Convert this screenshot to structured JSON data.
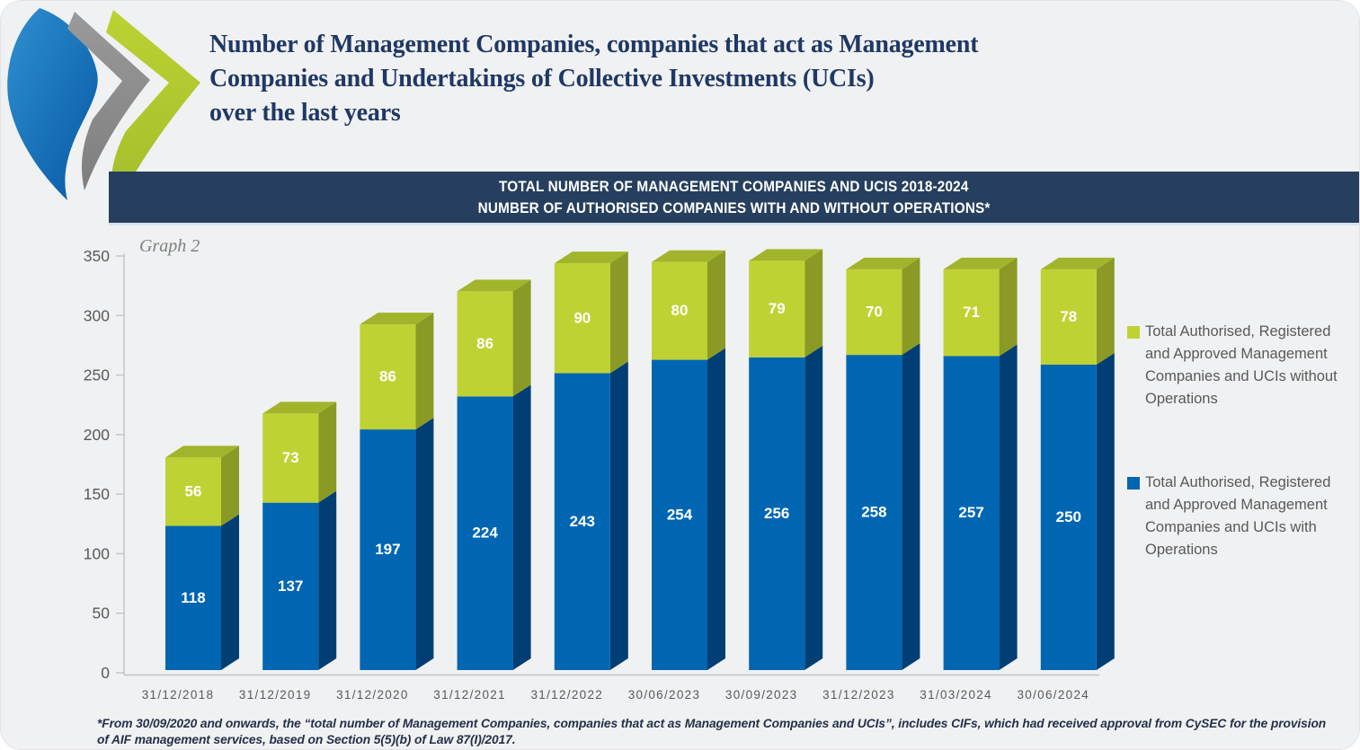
{
  "page": {
    "title_lines": [
      "Number of Management Companies, companies that act as Management",
      "Companies and Undertakings of Collective Investments (UCIs)",
      "over the last years"
    ],
    "graph_label": "Graph 2",
    "footnote_lines": [
      "*From 30/09/2020 and onwards, the “total number of Management Companies, companies that act as Management Companies and UCIs”, includes CIFs, which had received approval from CySEC for the provision",
      "of AIF management services, based on Section 5(5)(b) of Law 87(I)/2017."
    ]
  },
  "banner": {
    "line1": "TOTAL NUMBER OF MANAGEMENT COMPANIES AND UCIS 2018-2024",
    "line2": "NUMBER OF AUTHORISED COMPANIES WITH AND WITHOUT OPERATIONS*"
  },
  "legend": [
    {
      "color": "#BFD233",
      "label": "Total Authorised, Registered and Approved Management Companies and UCIs without Operations"
    },
    {
      "color": "#0066B2",
      "label": "Total Authorised, Registered and Approved Management Companies and UCIs with Operations"
    }
  ],
  "colors": {
    "background": "#F0F1F2",
    "banner_bg": "#263F5E",
    "title_text": "#1F3864",
    "axis_text": "#595959",
    "axis_line": "#C3C3C6",
    "bar_label_text": "#FFFFFF",
    "footnote_text": "#253048",
    "graph_label_text": "#7F7F7F"
  },
  "chart_data": {
    "type": "bar",
    "stacked": true,
    "title": "TOTAL NUMBER OF MANAGEMENT COMPANIES AND UCIS 2018-2024 — NUMBER OF AUTHORISED COMPANIES WITH AND WITHOUT OPERATIONS*",
    "annotation": "Graph 2",
    "categories": [
      "31/12/2018",
      "31/12/2019",
      "31/12/2020",
      "31/12/2021",
      "31/12/2022",
      "30/06/2023",
      "30/09/2023",
      "31/12/2023",
      "31/03/2024",
      "30/06/2024"
    ],
    "series": [
      {
        "name": "Total Authorised, Registered and Approved Management Companies and UCIs with Operations",
        "color": "#0066B2",
        "side_color": "#003E74",
        "values": [
          118,
          137,
          197,
          224,
          243,
          254,
          256,
          258,
          257,
          250
        ]
      },
      {
        "name": "Total Authorised, Registered and Approved Management Companies and UCIs without Operations",
        "color": "#BFD233",
        "side_color": "#8A9A24",
        "top_color": "#A2B42B",
        "values": [
          56,
          73,
          86,
          86,
          90,
          80,
          79,
          70,
          71,
          78
        ]
      }
    ],
    "totals": [
      174,
      210,
      283,
      310,
      333,
      334,
      335,
      328,
      328,
      328
    ],
    "xlabel": "",
    "ylabel": "",
    "ylim": [
      0,
      350
    ],
    "ytick_step": 50,
    "grid": false,
    "legend_position": "right",
    "value_labels": true
  }
}
